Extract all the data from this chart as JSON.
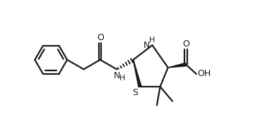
{
  "bg_color": "#ffffff",
  "line_color": "#1a1a1a",
  "line_width": 1.6,
  "fig_width": 3.92,
  "fig_height": 1.76,
  "dpi": 100,
  "xlim": [
    0,
    10.5
  ],
  "ylim": [
    2.0,
    7.5
  ]
}
